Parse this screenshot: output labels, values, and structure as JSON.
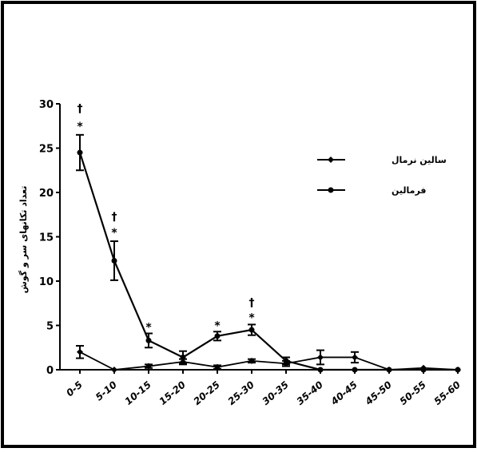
{
  "chart_data": {
    "type": "line",
    "title": "",
    "xlabel": "",
    "ylabel": "تعداد تکانهای سر و گوش",
    "ylim": [
      0,
      30
    ],
    "yticks": [
      "0",
      "5",
      "10",
      "15",
      "20",
      "25",
      "30"
    ],
    "categories": [
      "0-5",
      "5-10",
      "10-15",
      "15-20",
      "20-25",
      "25-30",
      "30-35",
      "35-40",
      "40-45",
      "45-50",
      "50-55",
      "55-60"
    ],
    "legend_position": "right",
    "grid": false,
    "series": [
      {
        "name": "سالین نرمال",
        "marker": "diamond",
        "values": [
          2,
          0,
          0.4,
          0.9,
          0.3,
          1,
          0.7,
          1.4,
          1.4,
          0,
          0.2,
          0
        ],
        "errors": [
          0.7,
          0,
          0.2,
          0.3,
          0.2,
          0.2,
          0.3,
          0.8,
          0.6,
          0,
          0,
          0
        ]
      },
      {
        "name": "فرمالین",
        "marker": "circle",
        "values": [
          24.5,
          12.3,
          3.3,
          1.4,
          3.8,
          4.5,
          1,
          0,
          0,
          0,
          0,
          0
        ],
        "errors": [
          2,
          2.2,
          0.8,
          0.7,
          0.5,
          0.6,
          0.4,
          0,
          0,
          0,
          0,
          0
        ]
      }
    ],
    "annotations": [
      {
        "category": "0-5",
        "y": 27.5,
        "text": "*"
      },
      {
        "category": "0-5",
        "y": 29.5,
        "text": "†"
      },
      {
        "category": "5-10",
        "y": 15.5,
        "text": "*"
      },
      {
        "category": "5-10",
        "y": 17.3,
        "text": "†"
      },
      {
        "category": "10-15",
        "y": 4.8,
        "text": "*"
      },
      {
        "category": "20-25",
        "y": 5,
        "text": "*"
      },
      {
        "category": "25-30",
        "y": 5.9,
        "text": "*"
      },
      {
        "category": "25-30",
        "y": 7.6,
        "text": "†"
      }
    ]
  }
}
